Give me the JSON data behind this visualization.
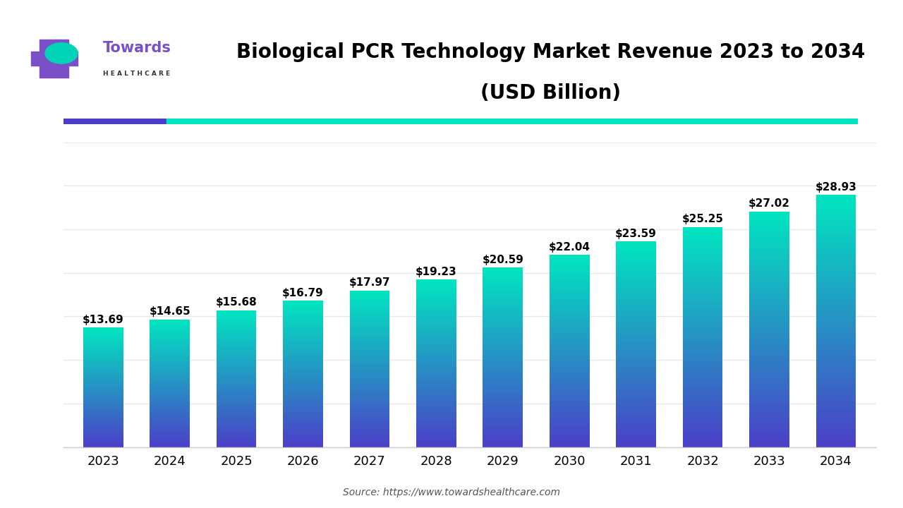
{
  "title_line1": "Biological PCR Technology Market Revenue 2023 to 2034",
  "title_line2": "(USD Billion)",
  "source_text": "Source: https://www.towardshealthcare.com",
  "years": [
    2023,
    2024,
    2025,
    2026,
    2027,
    2028,
    2029,
    2030,
    2031,
    2032,
    2033,
    2034
  ],
  "values": [
    13.69,
    14.65,
    15.68,
    16.79,
    17.97,
    19.23,
    20.59,
    22.04,
    23.59,
    25.25,
    27.02,
    28.93
  ],
  "bar_color_top": "#00E5C0",
  "bar_color_bottom": "#4B3FC8",
  "bg_color": "#FFFFFF",
  "plot_bg_color": "#FFFFFF",
  "grid_color": "#E8E8E8",
  "title_color": "#000000",
  "label_color": "#000000",
  "tick_color": "#000000",
  "source_color": "#555555",
  "bar_width": 0.6,
  "ylim_max": 35,
  "title_fontsize": 20,
  "label_fontsize": 11,
  "tick_fontsize": 13,
  "source_fontsize": 10,
  "accent_purple": "#4B3FC8",
  "accent_teal": "#00E5C0",
  "logo_purple": "#7B4FC8",
  "logo_teal": "#00D4B8"
}
